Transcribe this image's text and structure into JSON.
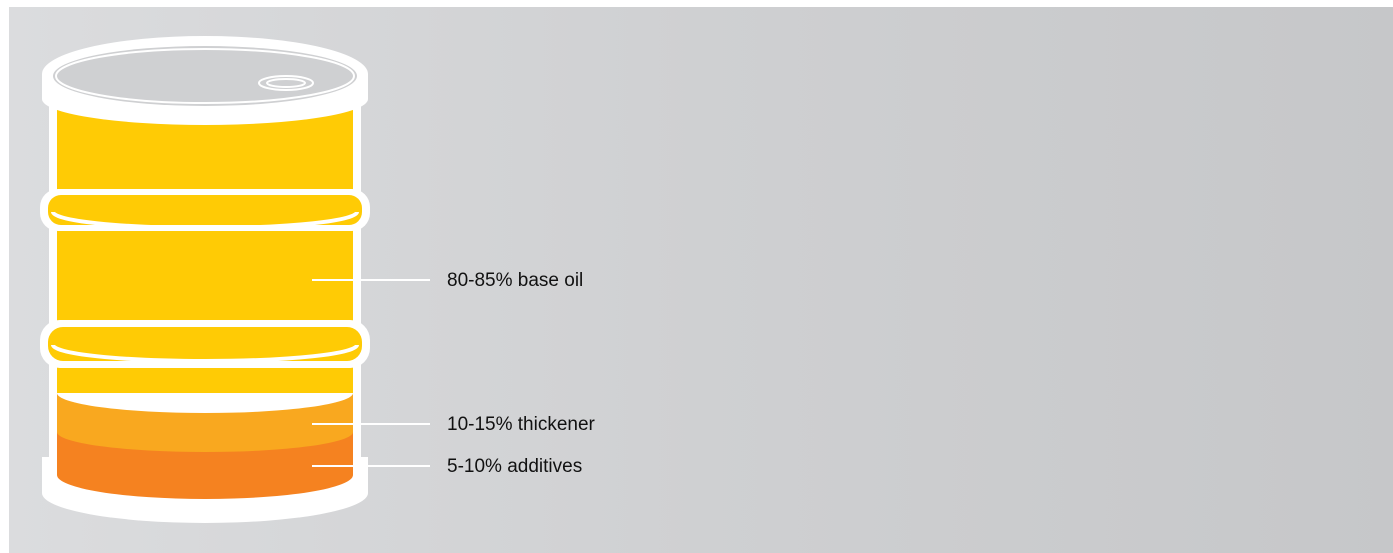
{
  "components": [
    {
      "key": "base-oil",
      "label": "80-85% base oil",
      "range_percent": [
        80,
        85
      ],
      "color": "#ffcb05"
    },
    {
      "key": "thickener",
      "label": "10-15% thickener",
      "range_percent": [
        10,
        15
      ],
      "color": "#f9a81f"
    },
    {
      "key": "additives",
      "label": "5-10% additives",
      "range_percent": [
        5,
        10
      ],
      "color": "#f58220"
    }
  ],
  "colors": {
    "barrel_outline": "#ffffff",
    "background": "#d4d5d7",
    "lid_detail": "#cfd0d2"
  },
  "icon": "oil-drum-icon"
}
